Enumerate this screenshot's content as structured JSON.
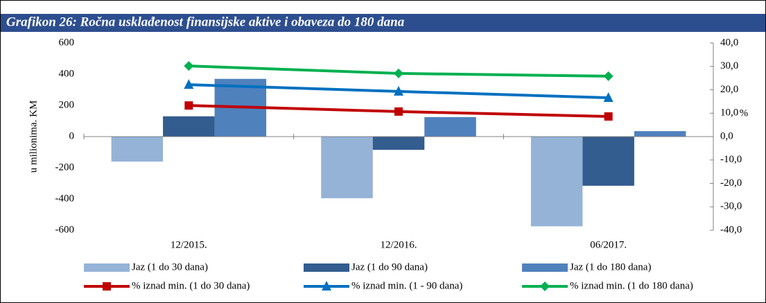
{
  "chart_data": {
    "type": "bar",
    "title": "Grafikon 26: Ročna usklađenost finansijske aktive i obaveza do 180 dana",
    "y_label": "u milionima. KM",
    "y2_label": "%",
    "categories": [
      "12/2015.",
      "12/2016.",
      "06/2017."
    ],
    "ylim": [
      -600,
      600
    ],
    "yticks": [
      -600,
      -400,
      -200,
      0,
      200,
      400,
      600
    ],
    "y2lim": [
      -40,
      40
    ],
    "y2ticks": [
      {
        "value": -40,
        "label": "-40,0"
      },
      {
        "value": -30,
        "label": "-30,0"
      },
      {
        "value": -20,
        "label": "-20,0"
      },
      {
        "value": -10,
        "label": "-10,0"
      },
      {
        "value": 0,
        "label": "0,0"
      },
      {
        "value": 10,
        "label": "10,0"
      },
      {
        "value": 20,
        "label": "20,0"
      },
      {
        "value": 30,
        "label": "30,0"
      },
      {
        "value": 40,
        "label": "40,0"
      }
    ],
    "series": [
      {
        "name": "Jaz (1 do 30 dana)",
        "type": "bar",
        "color": "#95b3d7",
        "values": [
          -160,
          -395,
          -575
        ]
      },
      {
        "name": "Jaz (1 do 90 dana)",
        "type": "bar",
        "color": "#335c8f",
        "values": [
          130,
          -85,
          -315
        ]
      },
      {
        "name": "Jaz (1 do 180 dana)",
        "type": "bar",
        "color": "#4f81bd",
        "values": [
          370,
          125,
          35
        ]
      },
      {
        "name": "% iznad min. (1 do 30 dana)",
        "type": "line",
        "marker": "square",
        "axis": "y2",
        "color": "#c00000",
        "values": [
          13.3,
          10.7,
          8.6
        ]
      },
      {
        "name": "% iznad min. (1 - 90 dana)",
        "type": "line",
        "marker": "triangle",
        "axis": "y2",
        "color": "#0070c0",
        "values": [
          22.2,
          19.3,
          16.6
        ]
      },
      {
        "name": "% iznad min. (1 do 180 dana)",
        "type": "line",
        "marker": "diamond",
        "axis": "y2",
        "color": "#00b050",
        "values": [
          30.2,
          27.0,
          25.8
        ]
      }
    ]
  }
}
